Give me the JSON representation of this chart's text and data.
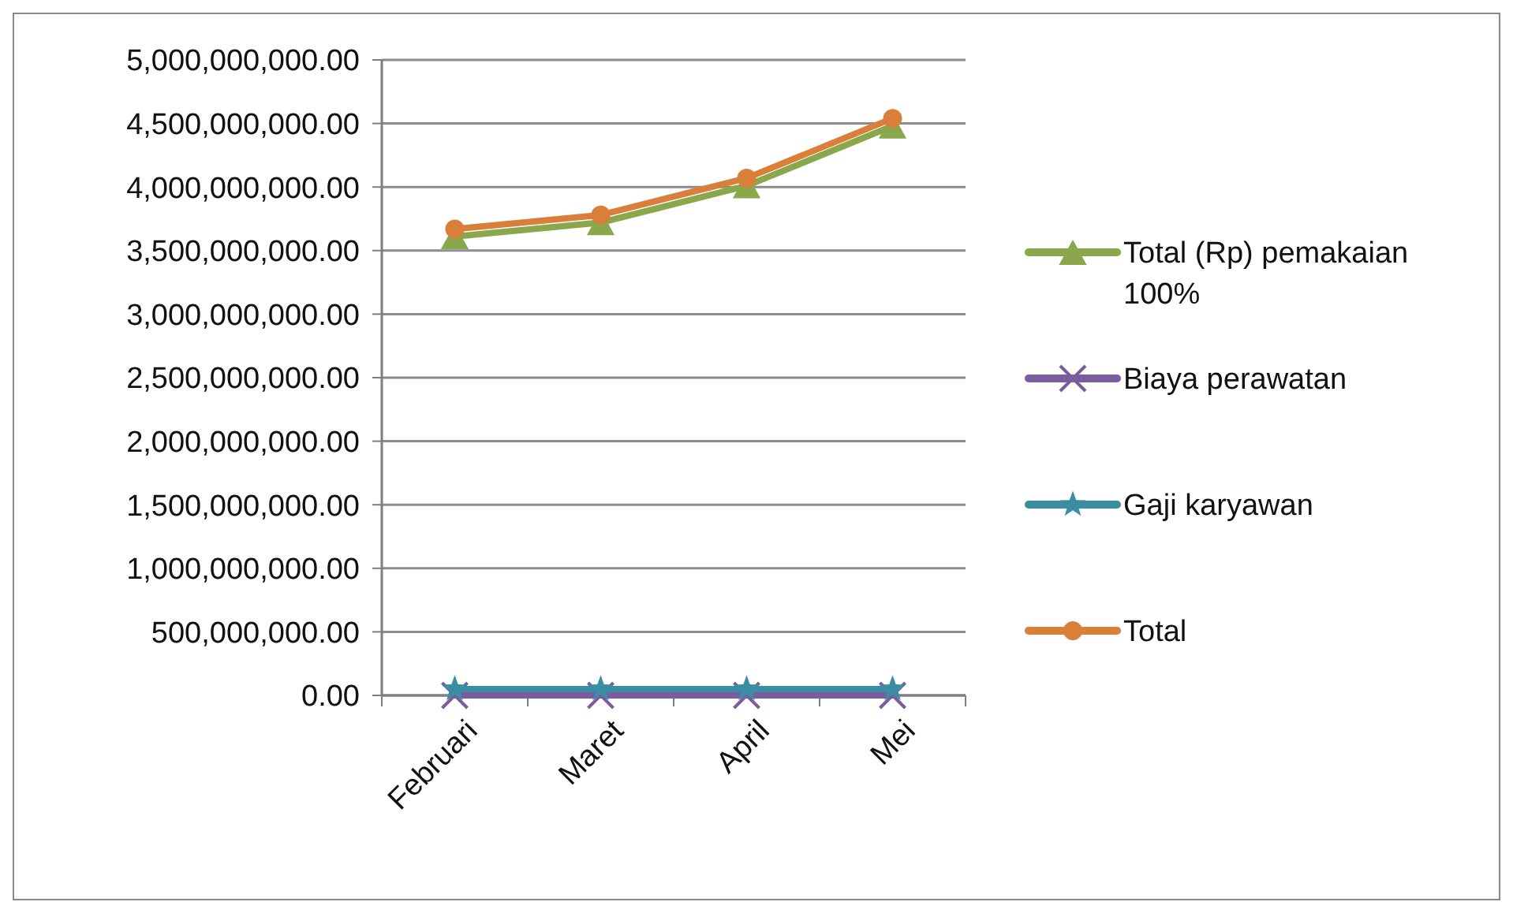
{
  "chart_data": {
    "type": "line",
    "categories": [
      "Februari",
      "Maret",
      "April",
      "Mei"
    ],
    "series": [
      {
        "name": "Total (Rp) pemakaian 100%",
        "color": "#8aa84b",
        "marker": "triangle",
        "values": [
          3610000000,
          3720000000,
          4010000000,
          4480000000
        ]
      },
      {
        "name": "Biaya perawatan",
        "color": "#7b5c9e",
        "marker": "cross",
        "values": [
          0,
          0,
          0,
          0
        ]
      },
      {
        "name": "Gaji karyawan",
        "color": "#3a8da3",
        "marker": "star",
        "values": [
          50000000,
          50000000,
          50000000,
          50000000
        ]
      },
      {
        "name": "Total",
        "color": "#da7f3a",
        "marker": "circle",
        "values": [
          3670000000,
          3780000000,
          4070000000,
          4540000000
        ]
      }
    ],
    "ylim": [
      0,
      5000000000
    ],
    "yticks": [
      {
        "value": 0,
        "label": "0.00"
      },
      {
        "value": 500000000,
        "label": "500,000,000.00"
      },
      {
        "value": 1000000000,
        "label": "1,000,000,000.00"
      },
      {
        "value": 1500000000,
        "label": "1,500,000,000.00"
      },
      {
        "value": 2000000000,
        "label": "2,000,000,000.00"
      },
      {
        "value": 2500000000,
        "label": "2,500,000,000.00"
      },
      {
        "value": 3000000000,
        "label": "3,000,000,000.00"
      },
      {
        "value": 3500000000,
        "label": "3,500,000,000.00"
      },
      {
        "value": 4000000000,
        "label": "4,000,000,000.00"
      },
      {
        "value": 4500000000,
        "label": "4,500,000,000.00"
      },
      {
        "value": 5000000000,
        "label": "5,000,000,000.00"
      }
    ],
    "grid": "y",
    "legend": "right",
    "line_style": "solid"
  }
}
